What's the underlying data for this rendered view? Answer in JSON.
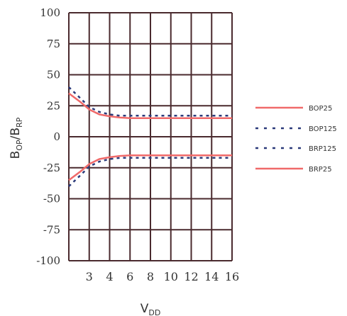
{
  "chart_data": {
    "type": "line",
    "ylabel_parts": [
      "B",
      "OP",
      "/B",
      "RP"
    ],
    "xlabel_parts": [
      "V",
      "DD"
    ],
    "ylim": [
      -100,
      100
    ],
    "y_ticks": [
      100,
      75,
      50,
      25,
      0,
      -25,
      -50,
      -75,
      -100
    ],
    "x_tick_labels": [
      "3",
      "4",
      "6",
      "8",
      "10",
      "12",
      "14",
      "16"
    ],
    "grid": true,
    "legend_position": "right",
    "series": [
      {
        "name": "BOP25",
        "style": "solid",
        "color": "#f06a6a",
        "points": [
          [
            2.3,
            35
          ],
          [
            2.7,
            28
          ],
          [
            3,
            22
          ],
          [
            3.5,
            18
          ],
          [
            4,
            16.5
          ],
          [
            5,
            15.5
          ],
          [
            6,
            15
          ],
          [
            8,
            15
          ],
          [
            10,
            15
          ],
          [
            12,
            15
          ],
          [
            14,
            15
          ],
          [
            16,
            15
          ]
        ]
      },
      {
        "name": "BOP125",
        "style": "dotted",
        "color": "#2b3a7a",
        "points": [
          [
            2.3,
            40
          ],
          [
            2.7,
            31
          ],
          [
            3,
            24
          ],
          [
            3.5,
            20
          ],
          [
            4,
            18
          ],
          [
            5,
            17
          ],
          [
            6,
            17
          ],
          [
            8,
            17
          ],
          [
            10,
            17
          ],
          [
            12,
            17
          ],
          [
            14,
            17
          ],
          [
            16,
            17
          ]
        ]
      },
      {
        "name": "BRP125",
        "style": "dotted",
        "color": "#2b3a7a",
        "points": [
          [
            2.3,
            -40
          ],
          [
            2.7,
            -31
          ],
          [
            3,
            -24
          ],
          [
            3.5,
            -20
          ],
          [
            4,
            -18
          ],
          [
            5,
            -17
          ],
          [
            6,
            -17
          ],
          [
            8,
            -17
          ],
          [
            10,
            -17
          ],
          [
            12,
            -17
          ],
          [
            14,
            -17
          ],
          [
            16,
            -17
          ]
        ]
      },
      {
        "name": "BRP25",
        "style": "solid",
        "color": "#f06a6a",
        "points": [
          [
            2.3,
            -35
          ],
          [
            2.7,
            -28
          ],
          [
            3,
            -22
          ],
          [
            3.5,
            -18
          ],
          [
            4,
            -16.5
          ],
          [
            5,
            -15.5
          ],
          [
            6,
            -15
          ],
          [
            8,
            -15
          ],
          [
            10,
            -15
          ],
          [
            12,
            -15
          ],
          [
            14,
            -15
          ],
          [
            16,
            -15
          ]
        ]
      }
    ]
  }
}
